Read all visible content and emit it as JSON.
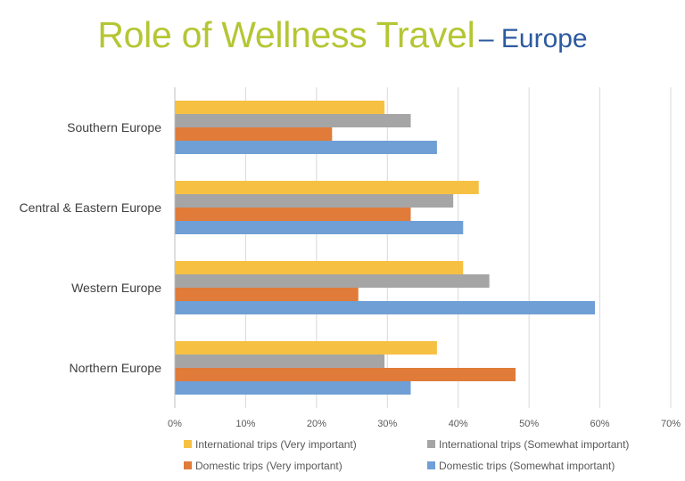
{
  "title": {
    "main": "Role of Wellness Travel",
    "sub": "– Europe"
  },
  "chart_data": {
    "type": "bar",
    "orientation": "horizontal",
    "categories": [
      "Southern Europe",
      "Central & Eastern Europe",
      "Western Europe",
      "Northern Europe"
    ],
    "series": [
      {
        "name": "International trips (Very important)",
        "color": "#f6c142",
        "values": [
          29.6,
          42.9,
          40.7,
          37.0
        ]
      },
      {
        "name": "International trips (Somewhat important)",
        "color": "#a5a5a5",
        "values": [
          33.3,
          39.3,
          44.4,
          29.6
        ]
      },
      {
        "name": "Domestic trips (Very important)",
        "color": "#e07b39",
        "values": [
          22.2,
          33.3,
          25.9,
          48.1
        ]
      },
      {
        "name": "Domestic trips (Somewhat important)",
        "color": "#6f9fd5",
        "values": [
          37.0,
          40.7,
          59.3,
          33.3
        ]
      }
    ],
    "xlim": [
      0,
      70
    ],
    "xticks": [
      "0%",
      "10%",
      "20%",
      "30%",
      "40%",
      "50%",
      "60%",
      "70%"
    ],
    "grid": true,
    "legend_position": "bottom"
  }
}
